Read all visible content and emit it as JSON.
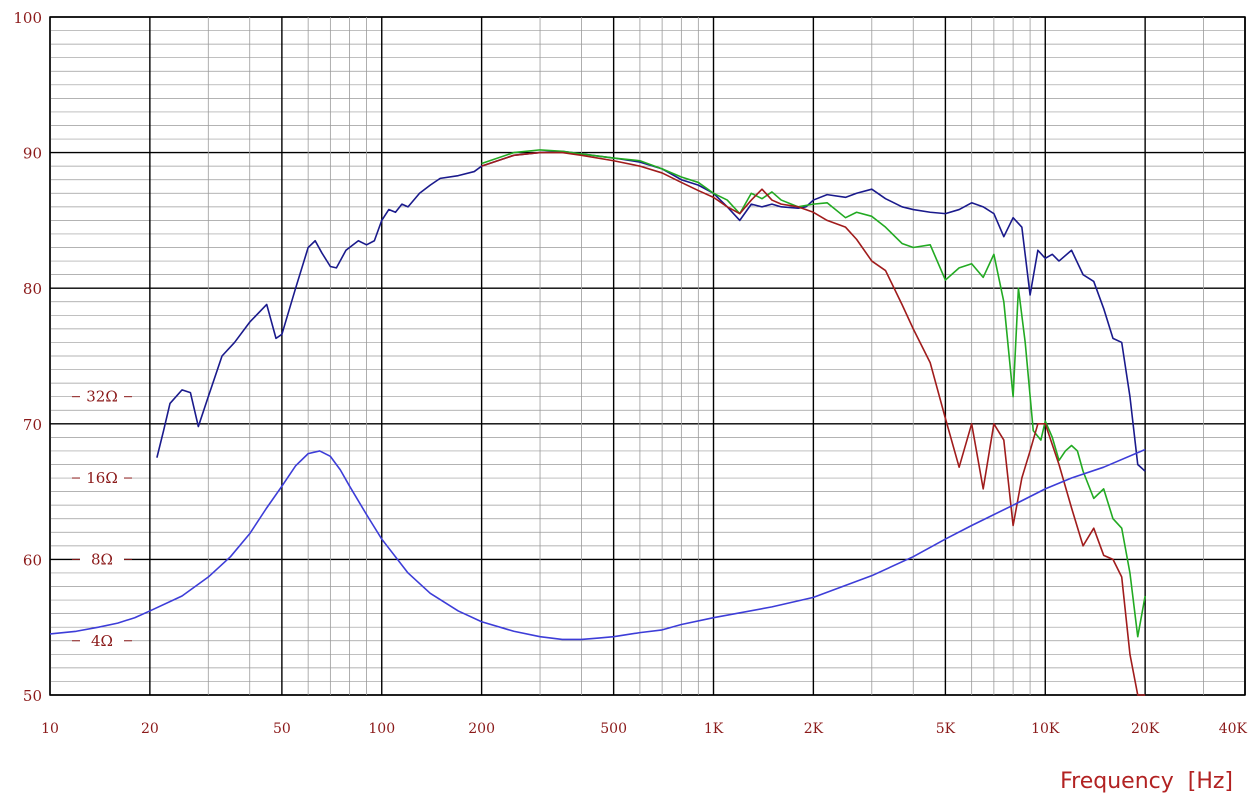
{
  "chart_data": {
    "type": "line",
    "xlabel": "Frequency  [Hz]",
    "ylabel": "",
    "title": "",
    "x_scale": "log",
    "xlim": [
      10,
      40000
    ],
    "ylim": [
      50,
      100
    ],
    "grid": true,
    "y_ticks": [
      "50",
      "60",
      "70",
      "80",
      "90",
      "100"
    ],
    "x_ticks": [
      {
        "value": 10,
        "label": "10"
      },
      {
        "value": 20,
        "label": "20"
      },
      {
        "value": 50,
        "label": "50"
      },
      {
        "value": 100,
        "label": "100"
      },
      {
        "value": 200,
        "label": "200"
      },
      {
        "value": 500,
        "label": "500"
      },
      {
        "value": 1000,
        "label": "1K"
      },
      {
        "value": 2000,
        "label": "2K"
      },
      {
        "value": 5000,
        "label": "5K"
      },
      {
        "value": 10000,
        "label": "10K"
      },
      {
        "value": 20000,
        "label": "20K"
      },
      {
        "value": 40000,
        "label": "40K"
      }
    ],
    "impedance_labels": [
      {
        "label": "32Ω",
        "y": 72
      },
      {
        "label": "16Ω",
        "y": 66
      },
      {
        "label": "8Ω",
        "y": 60
      },
      {
        "label": "4Ω",
        "y": 54
      }
    ],
    "series": [
      {
        "color": "#1a1a8c",
        "points": [
          [
            21,
            67.5
          ],
          [
            22,
            69.5
          ],
          [
            23,
            71.5
          ],
          [
            25,
            72.5
          ],
          [
            26.5,
            72.3
          ],
          [
            28,
            69.8
          ],
          [
            30,
            72
          ],
          [
            33,
            75
          ],
          [
            36,
            76
          ],
          [
            40,
            77.5
          ],
          [
            45,
            78.8
          ],
          [
            48,
            76.3
          ],
          [
            50,
            76.6
          ],
          [
            55,
            80
          ],
          [
            60,
            83
          ],
          [
            63,
            83.5
          ],
          [
            66,
            82.6
          ],
          [
            70,
            81.6
          ],
          [
            73,
            81.5
          ],
          [
            78,
            82.8
          ],
          [
            85,
            83.5
          ],
          [
            90,
            83.2
          ],
          [
            95,
            83.5
          ],
          [
            100,
            85
          ],
          [
            105,
            85.8
          ],
          [
            110,
            85.6
          ],
          [
            115,
            86.2
          ],
          [
            120,
            86
          ],
          [
            130,
            87
          ],
          [
            140,
            87.6
          ],
          [
            150,
            88.1
          ],
          [
            170,
            88.3
          ],
          [
            190,
            88.6
          ],
          [
            200,
            89
          ],
          [
            250,
            89.8
          ],
          [
            300,
            90
          ],
          [
            350,
            90.1
          ],
          [
            400,
            89.9
          ],
          [
            500,
            89.6
          ],
          [
            600,
            89.3
          ],
          [
            700,
            88.8
          ],
          [
            800,
            88
          ],
          [
            900,
            87.6
          ],
          [
            1000,
            87
          ],
          [
            1100,
            86
          ],
          [
            1200,
            85
          ],
          [
            1300,
            86.2
          ],
          [
            1400,
            86
          ],
          [
            1500,
            86.2
          ],
          [
            1600,
            86
          ],
          [
            1800,
            85.9
          ],
          [
            1900,
            86
          ],
          [
            2000,
            86.5
          ],
          [
            2200,
            86.9
          ],
          [
            2500,
            86.7
          ],
          [
            2700,
            87
          ],
          [
            3000,
            87.3
          ],
          [
            3300,
            86.6
          ],
          [
            3700,
            86
          ],
          [
            4000,
            85.8
          ],
          [
            4500,
            85.6
          ],
          [
            5000,
            85.5
          ],
          [
            5500,
            85.8
          ],
          [
            6000,
            86.3
          ],
          [
            6500,
            86
          ],
          [
            7000,
            85.5
          ],
          [
            7500,
            83.8
          ],
          [
            8000,
            85.2
          ],
          [
            8500,
            84.5
          ],
          [
            9000,
            79.5
          ],
          [
            9500,
            82.8
          ],
          [
            10000,
            82.2
          ],
          [
            10500,
            82.5
          ],
          [
            11000,
            82
          ],
          [
            12000,
            82.8
          ],
          [
            13000,
            81
          ],
          [
            14000,
            80.5
          ],
          [
            15000,
            78.5
          ],
          [
            16000,
            76.3
          ],
          [
            17000,
            76
          ],
          [
            18000,
            72
          ],
          [
            19000,
            67
          ],
          [
            20000,
            66.5
          ]
        ]
      },
      {
        "color": "#22aa22",
        "points": [
          [
            200,
            89.2
          ],
          [
            250,
            90
          ],
          [
            300,
            90.2
          ],
          [
            350,
            90.1
          ],
          [
            400,
            89.9
          ],
          [
            500,
            89.6
          ],
          [
            600,
            89.4
          ],
          [
            700,
            88.8
          ],
          [
            800,
            88.2
          ],
          [
            900,
            87.8
          ],
          [
            1000,
            87
          ],
          [
            1100,
            86.5
          ],
          [
            1200,
            85.5
          ],
          [
            1300,
            87
          ],
          [
            1400,
            86.6
          ],
          [
            1500,
            87.1
          ],
          [
            1600,
            86.5
          ],
          [
            1800,
            86
          ],
          [
            2000,
            86.2
          ],
          [
            2200,
            86.3
          ],
          [
            2500,
            85.2
          ],
          [
            2700,
            85.6
          ],
          [
            3000,
            85.3
          ],
          [
            3300,
            84.5
          ],
          [
            3700,
            83.3
          ],
          [
            4000,
            83
          ],
          [
            4500,
            83.2
          ],
          [
            5000,
            80.6
          ],
          [
            5500,
            81.5
          ],
          [
            6000,
            81.8
          ],
          [
            6500,
            80.8
          ],
          [
            7000,
            82.5
          ],
          [
            7500,
            79
          ],
          [
            8000,
            72
          ],
          [
            8300,
            80
          ],
          [
            8700,
            76
          ],
          [
            9200,
            69.5
          ],
          [
            9700,
            68.8
          ],
          [
            10000,
            70.2
          ],
          [
            10500,
            69
          ],
          [
            11000,
            67.3
          ],
          [
            11500,
            68
          ],
          [
            12000,
            68.4
          ],
          [
            12500,
            68
          ],
          [
            13000,
            66.5
          ],
          [
            14000,
            64.5
          ],
          [
            15000,
            65.2
          ],
          [
            16000,
            63
          ],
          [
            17000,
            62.3
          ],
          [
            18000,
            59
          ],
          [
            19000,
            54.3
          ],
          [
            20000,
            57.3
          ]
        ]
      },
      {
        "color": "#a01c1c",
        "points": [
          [
            200,
            89
          ],
          [
            250,
            89.8
          ],
          [
            300,
            90
          ],
          [
            350,
            90
          ],
          [
            400,
            89.8
          ],
          [
            500,
            89.4
          ],
          [
            600,
            89
          ],
          [
            700,
            88.5
          ],
          [
            800,
            87.8
          ],
          [
            900,
            87.2
          ],
          [
            1000,
            86.7
          ],
          [
            1100,
            86
          ],
          [
            1200,
            85.5
          ],
          [
            1300,
            86.5
          ],
          [
            1400,
            87.3
          ],
          [
            1500,
            86.5
          ],
          [
            1600,
            86.2
          ],
          [
            1800,
            86
          ],
          [
            2000,
            85.6
          ],
          [
            2200,
            85
          ],
          [
            2500,
            84.5
          ],
          [
            2700,
            83.6
          ],
          [
            3000,
            82
          ],
          [
            3300,
            81.3
          ],
          [
            3700,
            78.8
          ],
          [
            4000,
            77
          ],
          [
            4500,
            74.5
          ],
          [
            5000,
            70.4
          ],
          [
            5500,
            66.8
          ],
          [
            6000,
            70
          ],
          [
            6500,
            65.2
          ],
          [
            7000,
            70
          ],
          [
            7500,
            68.8
          ],
          [
            8000,
            62.5
          ],
          [
            8500,
            66
          ],
          [
            9000,
            68
          ],
          [
            9500,
            70
          ],
          [
            10000,
            70
          ],
          [
            11000,
            67
          ],
          [
            12000,
            63.8
          ],
          [
            13000,
            61
          ],
          [
            14000,
            62.3
          ],
          [
            15000,
            60.3
          ],
          [
            16000,
            60
          ],
          [
            17000,
            58.7
          ],
          [
            18000,
            53
          ],
          [
            19000,
            50
          ],
          [
            20000,
            50
          ]
        ]
      },
      {
        "color": "#3d3dd8",
        "points": [
          [
            10,
            54.5
          ],
          [
            12,
            54.7
          ],
          [
            14,
            55
          ],
          [
            16,
            55.3
          ],
          [
            18,
            55.7
          ],
          [
            20,
            56.2
          ],
          [
            25,
            57.3
          ],
          [
            30,
            58.7
          ],
          [
            35,
            60.2
          ],
          [
            40,
            61.9
          ],
          [
            45,
            63.8
          ],
          [
            50,
            65.4
          ],
          [
            55,
            66.9
          ],
          [
            60,
            67.8
          ],
          [
            65,
            68
          ],
          [
            70,
            67.6
          ],
          [
            75,
            66.6
          ],
          [
            80,
            65.4
          ],
          [
            90,
            63.3
          ],
          [
            100,
            61.5
          ],
          [
            120,
            59
          ],
          [
            140,
            57.5
          ],
          [
            170,
            56.2
          ],
          [
            200,
            55.4
          ],
          [
            250,
            54.7
          ],
          [
            300,
            54.3
          ],
          [
            350,
            54.1
          ],
          [
            400,
            54.1
          ],
          [
            450,
            54.2
          ],
          [
            500,
            54.3
          ],
          [
            600,
            54.6
          ],
          [
            700,
            54.8
          ],
          [
            800,
            55.2
          ],
          [
            1000,
            55.7
          ],
          [
            1500,
            56.5
          ],
          [
            2000,
            57.2
          ],
          [
            3000,
            58.8
          ],
          [
            4000,
            60.2
          ],
          [
            5000,
            61.5
          ],
          [
            6000,
            62.5
          ],
          [
            8000,
            64
          ],
          [
            10000,
            65.2
          ],
          [
            12000,
            66
          ],
          [
            15000,
            66.8
          ],
          [
            20000,
            68.1
          ]
        ]
      }
    ]
  }
}
